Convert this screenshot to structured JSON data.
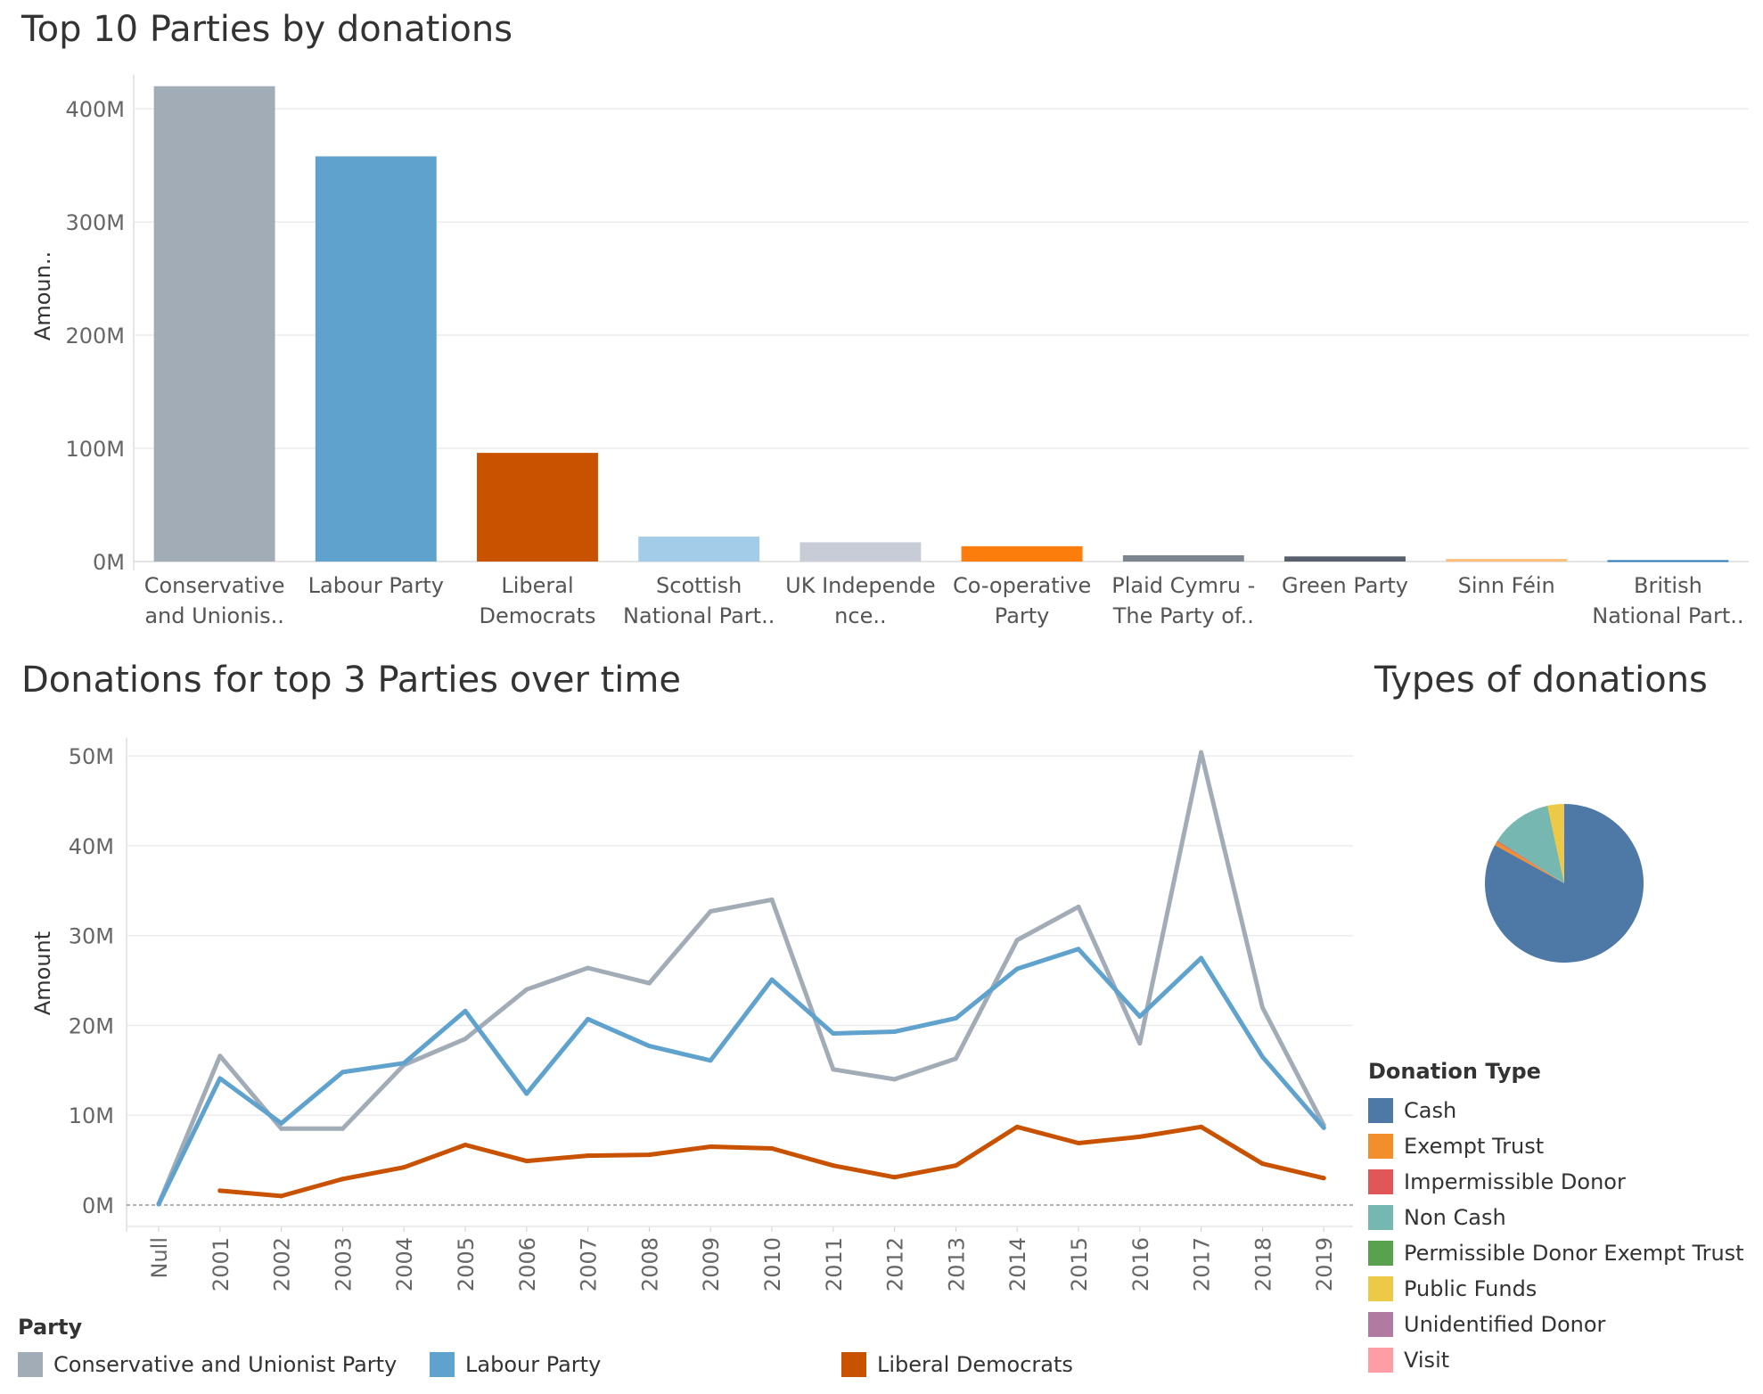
{
  "titles": {
    "bar": "Top 10 Parties by donations",
    "line": "Donations for top 3 Parties over time",
    "pie": "Types of donations"
  },
  "legends": {
    "party_title": "Party",
    "donation_type_title": "Donation Type"
  },
  "chart_data": [
    {
      "type": "bar",
      "title": "Top 10 Parties by donations",
      "ylabel": "Amoun..",
      "xlabel": "",
      "ylim": [
        0,
        430
      ],
      "yticks": [
        0,
        100,
        200,
        300,
        400
      ],
      "ytick_labels": [
        "0M",
        "100M",
        "200M",
        "300M",
        "400M"
      ],
      "grid": true,
      "categories": [
        [
          "Conservative",
          "and Unionis.."
        ],
        [
          "Labour Party"
        ],
        [
          "Liberal",
          "Democrats"
        ],
        [
          "Scottish",
          "National Part.."
        ],
        [
          "UK Independe",
          "nce.."
        ],
        [
          "Co-operative",
          "Party"
        ],
        [
          "Plaid Cymru -",
          "The Party of.."
        ],
        [
          "Green Party"
        ],
        [
          "Sinn Féin"
        ],
        [
          "British",
          "National Part.."
        ]
      ],
      "values": [
        420,
        358,
        96,
        22,
        17,
        13.5,
        5.5,
        4.5,
        2.2,
        1.2
      ],
      "colors": [
        "#a2acb7",
        "#5fa2cd",
        "#c85200",
        "#a3cce9",
        "#c8ccd6",
        "#fc7d0b",
        "#7b848f",
        "#57606c",
        "#ffbc79",
        "#2b7ab8"
      ],
      "unit": "M"
    },
    {
      "type": "line",
      "title": "Donations for top 3 Parties over time",
      "ylabel": "Amount",
      "xlabel": "",
      "ylim": [
        0,
        52
      ],
      "yticks": [
        0,
        10,
        20,
        30,
        40,
        50
      ],
      "ytick_labels": [
        "0M",
        "10M",
        "20M",
        "30M",
        "40M",
        "50M"
      ],
      "grid": true,
      "x": [
        "Null",
        "2001",
        "2002",
        "2003",
        "2004",
        "2005",
        "2006",
        "2007",
        "2008",
        "2009",
        "2010",
        "2011",
        "2012",
        "2013",
        "2014",
        "2015",
        "2016",
        "2017",
        "2018",
        "2019"
      ],
      "legend_position": "bottom",
      "series": [
        {
          "name": "Conservative and Unionist Party",
          "color": "#a2acb7",
          "values": [
            0.1,
            16.6,
            8.5,
            8.5,
            15.6,
            18.5,
            24.0,
            26.4,
            24.7,
            32.7,
            34.0,
            15.1,
            14.0,
            16.3,
            29.5,
            33.2,
            18.0,
            50.4,
            22.0,
            8.9
          ]
        },
        {
          "name": "Labour Party",
          "color": "#5fa2cd",
          "values": [
            0.1,
            14.1,
            9.1,
            14.8,
            15.8,
            21.6,
            12.4,
            20.7,
            17.7,
            16.1,
            25.1,
            19.1,
            19.3,
            20.8,
            26.3,
            28.5,
            21.0,
            27.5,
            16.5,
            8.6
          ]
        },
        {
          "name": "Liberal Democrats",
          "color": "#c85200",
          "values": [
            null,
            1.6,
            1.0,
            2.9,
            4.2,
            6.7,
            4.9,
            5.5,
            5.6,
            6.5,
            6.3,
            4.4,
            3.1,
            4.4,
            8.7,
            6.9,
            7.6,
            8.7,
            4.6,
            3.0
          ]
        }
      ]
    },
    {
      "type": "pie",
      "title": "Types of donations",
      "labels": [
        "Cash",
        "Exempt Trust",
        "Impermissible Donor",
        "Non Cash",
        "Permissible Donor Exempt Trust",
        "Public Funds",
        "Unidentified Donor",
        "Visit"
      ],
      "values": [
        83.0,
        0.8,
        0.2,
        12.5,
        0.1,
        3.3,
        0.05,
        0.05
      ],
      "colors": [
        "#4e79a7",
        "#f28e2b",
        "#e15759",
        "#76b7b2",
        "#59a14f",
        "#edc948",
        "#b07aa1",
        "#ff9da7"
      ],
      "legend_position": "right"
    }
  ]
}
